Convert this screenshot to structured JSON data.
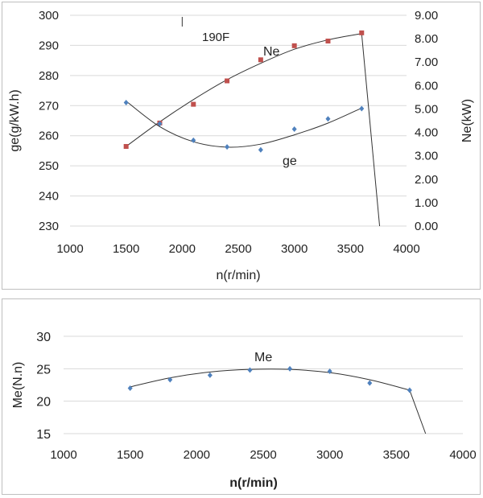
{
  "chart_data": [
    {
      "type": "scatter",
      "annotation": "190F",
      "xlabel": "n(r/min)",
      "xlim": [
        1000,
        4000
      ],
      "xticks": [
        1000,
        1500,
        2000,
        2500,
        3000,
        3500,
        4000
      ],
      "ylabel_left": "ge(g/kW.h)",
      "ylim_left": [
        230,
        300
      ],
      "yticks_left": [
        230,
        240,
        250,
        260,
        270,
        280,
        290,
        300
      ],
      "ylabel_right": "Ne(kW)",
      "ylim_right": [
        0,
        9
      ],
      "yticks_right": [
        "0.00",
        "1.00",
        "2.00",
        "3.00",
        "4.00",
        "5.00",
        "6.00",
        "7.00",
        "8.00",
        "9.00"
      ],
      "grid": "horizontal",
      "series": [
        {
          "name": "Ne",
          "axis": "right",
          "marker": "square",
          "color": "#c0504d",
          "x": [
            1500,
            1800,
            2100,
            2400,
            2700,
            3000,
            3300,
            3600
          ],
          "y": [
            3.4,
            4.4,
            5.2,
            6.2,
            7.1,
            7.7,
            7.9,
            8.25
          ],
          "trend_x": [
            1500,
            1800,
            2100,
            2400,
            2700,
            3000,
            3300,
            3600,
            3760
          ],
          "trend_y": [
            3.4,
            4.45,
            5.4,
            6.25,
            6.95,
            7.55,
            7.95,
            8.22,
            0
          ]
        },
        {
          "name": "ge",
          "axis": "left",
          "marker": "diamond",
          "color": "#4f81bd",
          "x": [
            1500,
            1800,
            2100,
            2400,
            2700,
            3000,
            3300,
            3600
          ],
          "y": [
            271,
            264,
            258.5,
            256.3,
            255.3,
            262.2,
            265.6,
            269
          ],
          "trend_x": [
            1500,
            1800,
            2100,
            2400,
            2700,
            3000,
            3300,
            3600
          ],
          "trend_y": [
            271.5,
            263,
            258,
            256.2,
            257.2,
            260.3,
            264.2,
            269.2
          ]
        }
      ]
    },
    {
      "type": "scatter",
      "xlabel": "n(r/min)",
      "xlim": [
        1000,
        4000
      ],
      "xticks": [
        1000,
        1500,
        2000,
        2500,
        3000,
        3500,
        4000
      ],
      "ylabel": "Me(N.n)",
      "ylim": [
        15,
        30
      ],
      "yticks": [
        15,
        20,
        25,
        30
      ],
      "grid": "horizontal",
      "series": [
        {
          "name": "Me",
          "marker": "diamond",
          "color": "#4f81bd",
          "x": [
            1500,
            1800,
            2100,
            2400,
            2700,
            3000,
            3300,
            3600
          ],
          "y": [
            22.0,
            23.3,
            24.0,
            24.8,
            25.0,
            24.6,
            22.8,
            21.7
          ],
          "trend_x": [
            1500,
            1800,
            2100,
            2400,
            2700,
            3000,
            3300,
            3600,
            3720
          ],
          "trend_y": [
            22.2,
            23.6,
            24.5,
            24.9,
            24.9,
            24.4,
            23.3,
            21.7,
            15
          ]
        }
      ]
    }
  ]
}
